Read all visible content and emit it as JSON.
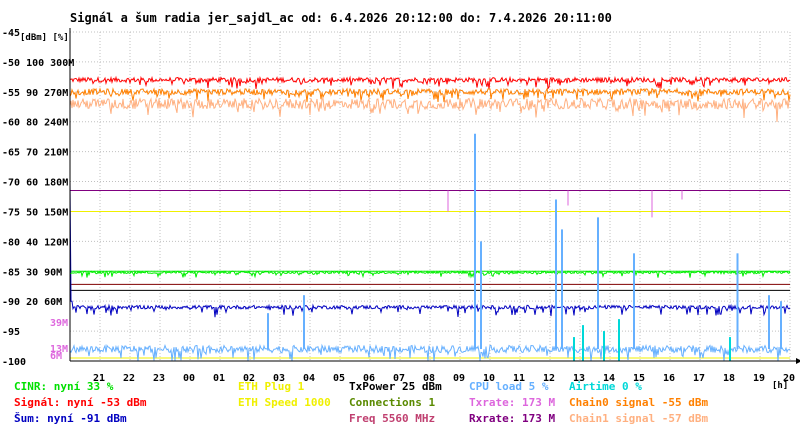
{
  "chart_data": {
    "type": "line",
    "title": "Signál a šum radia jer_sajdl_ac od: 6.4.2026 20:12:00 do: 7.4.2026 20:11:00",
    "ylabel_units": "[dBm] [%]",
    "xlabel_unit": "[h]",
    "x_ticks": [
      "21",
      "22",
      "23",
      "00",
      "01",
      "02",
      "03",
      "04",
      "05",
      "06",
      "07",
      "08",
      "09",
      "10",
      "11",
      "12",
      "13",
      "14",
      "15",
      "16",
      "17",
      "18",
      "19",
      "20"
    ],
    "x_range_h": [
      0,
      24
    ],
    "y_range_dbm": [
      -100,
      -45
    ],
    "y_ticks": [
      {
        "dbm": -45,
        "pct": "",
        "rate": ""
      },
      {
        "dbm": -50,
        "pct": "100",
        "rate": "300M"
      },
      {
        "dbm": -55,
        "pct": "90",
        "rate": "270M"
      },
      {
        "dbm": -60,
        "pct": "80",
        "rate": "240M"
      },
      {
        "dbm": -65,
        "pct": "70",
        "rate": "210M"
      },
      {
        "dbm": -70,
        "pct": "60",
        "rate": "180M"
      },
      {
        "dbm": -75,
        "pct": "50",
        "rate": "150M"
      },
      {
        "dbm": -80,
        "pct": "40",
        "rate": "120M"
      },
      {
        "dbm": -85,
        "pct": "30",
        "rate": "90M"
      },
      {
        "dbm": -90,
        "pct": "20",
        "rate": "60M"
      },
      {
        "dbm": -95,
        "pct": "",
        "rate": ""
      },
      {
        "dbm": -100,
        "pct": "",
        "rate": ""
      }
    ],
    "extra_scale_labels": [
      {
        "text": "39M",
        "dbm": -93.5,
        "color": "#dd66dd"
      },
      {
        "text": "13M",
        "dbm": -97.8,
        "color": "#dd66dd"
      },
      {
        "text": "6M",
        "dbm": -99.0,
        "color": "#dd66dd"
      }
    ],
    "series": [
      {
        "name": "Signál",
        "color": "#ff0000",
        "base": -53,
        "noise": 0.4,
        "spike": 1.3
      },
      {
        "name": "Chain0 signal",
        "color": "#ff8000",
        "base": -55,
        "noise": 0.5,
        "spike": 1.5
      },
      {
        "name": "Chain1 signal",
        "color": "#ffb080",
        "base": -57,
        "noise": 0.9,
        "spike": 2.3
      },
      {
        "name": "Šum",
        "color": "#0000c0",
        "base": -91,
        "noise": 0.3,
        "spike": 1.5,
        "start": -70,
        "drop": -90
      },
      {
        "name": "Connections",
        "color": "#00ee00",
        "base": -85.2,
        "noise": 0.2,
        "spike": 0.8
      },
      {
        "name": "Txrate",
        "color": "#dd66dd",
        "base": -71.5,
        "noise": 0,
        "spike": 0
      },
      {
        "name": "Rxrate",
        "color": "#800080",
        "base": -71.5,
        "noise": 0,
        "spike": 0
      },
      {
        "name": "ETH Speed",
        "color": "#f0f000",
        "base": -75,
        "noise": 0,
        "spike": 0
      },
      {
        "name": "CPU load",
        "color": "#66b0ff",
        "base": -98,
        "noise": 0.6,
        "spike": 2
      },
      {
        "name": "Airtime",
        "color": "#00d8d8",
        "base": -100,
        "noise": 0,
        "spike": 0
      }
    ],
    "hlines": [
      {
        "dbm": -71.5,
        "color": "#800080"
      },
      {
        "dbm": -75,
        "color": "#f0f000"
      },
      {
        "dbm": -85,
        "color": "#00ee00"
      },
      {
        "dbm": -87.2,
        "color": "#800000"
      },
      {
        "dbm": -88.2,
        "color": "#000000"
      },
      {
        "dbm": -99.5,
        "color": "#f0f000"
      }
    ],
    "cpu_spikes": [
      {
        "h": 13.5,
        "dbm": -62
      },
      {
        "h": 13.7,
        "dbm": -80
      },
      {
        "h": 16.2,
        "dbm": -73
      },
      {
        "h": 16.4,
        "dbm": -78
      },
      {
        "h": 17.6,
        "dbm": -76
      },
      {
        "h": 18.8,
        "dbm": -82
      },
      {
        "h": 22.25,
        "dbm": -82
      },
      {
        "h": 7.8,
        "dbm": -89
      },
      {
        "h": 6.6,
        "dbm": -92
      },
      {
        "h": 23.3,
        "dbm": -89
      },
      {
        "h": 23.7,
        "dbm": -90
      }
    ],
    "airtime_spikes": [
      {
        "h": 16.8,
        "dbm": -96
      },
      {
        "h": 17.1,
        "dbm": -94
      },
      {
        "h": 17.8,
        "dbm": -95
      },
      {
        "h": 18.3,
        "dbm": -93
      },
      {
        "h": 22.0,
        "dbm": -96
      }
    ],
    "legend": [
      {
        "text": "CINR: nyní 33 %",
        "color": "#00e000"
      },
      {
        "text": "ETH Plug 1",
        "color": "#f0f000"
      },
      {
        "text": "TxPower 25 dBm",
        "color": "#000000"
      },
      {
        "text": "CPU load 5 %",
        "color": "#66b0ff"
      },
      {
        "text": "Airtime 0 %",
        "color": "#00d8d8"
      },
      {
        "text": "Signál: nyní -53 dBm",
        "color": "#ff0000"
      },
      {
        "text": "ETH Speed 1000",
        "color": "#f0f000"
      },
      {
        "text": "Connections 1",
        "color": "#5a8a00"
      },
      {
        "text": "Txrate: 173 M",
        "color": "#dd66dd"
      },
      {
        "text": "Chain0 signal -55 dBm",
        "color": "#ff8000"
      },
      {
        "text": "Šum: nyní -91 dBm",
        "color": "#0000c0"
      },
      {
        "text": "Freq 5560 MHz",
        "color": "#c04070"
      },
      {
        "text": "Rxrate: 173 M",
        "color": "#800080"
      },
      {
        "text": "Chain1 signal -57 dBm",
        "color": "#ffb080"
      }
    ]
  }
}
